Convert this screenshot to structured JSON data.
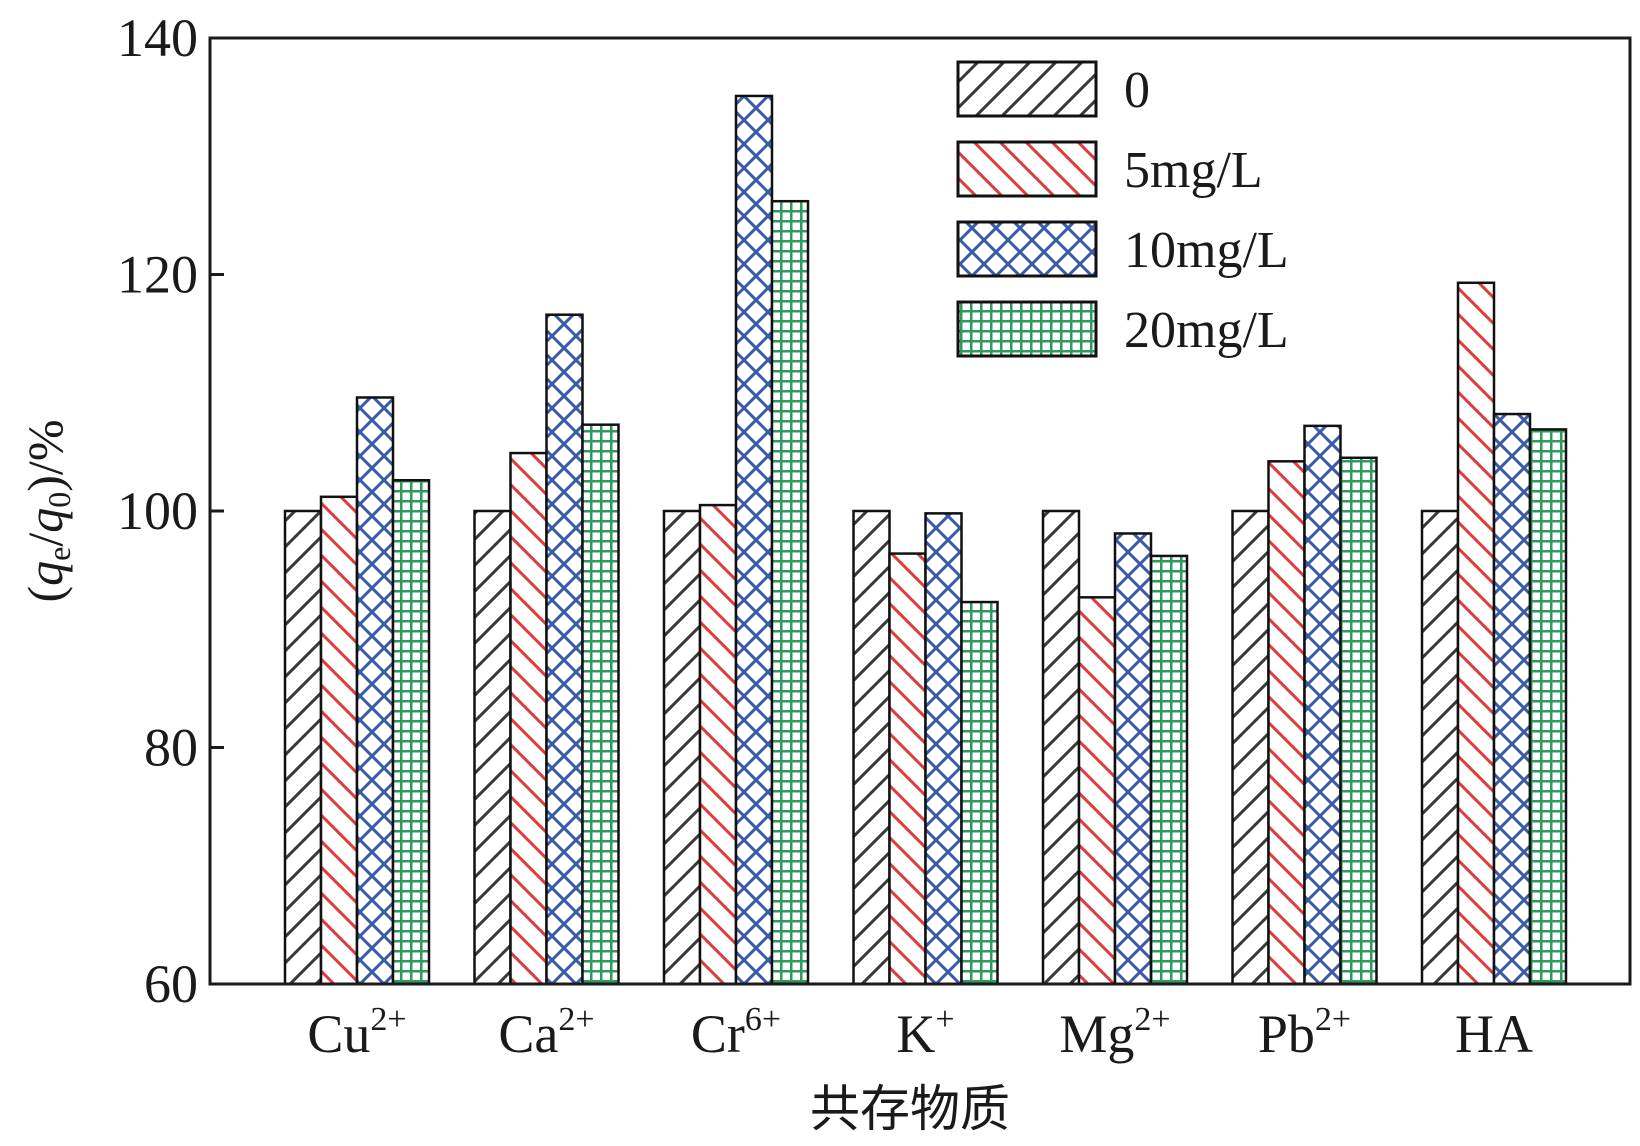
{
  "chart_data": {
    "type": "bar",
    "xlabel": "共存物质",
    "ylabel": {
      "open": "(",
      "q1": "q",
      "sub1": "e",
      "slash": "/",
      "q2": "q",
      "sub2": "0",
      "close": ")/%"
    },
    "ylim": [
      60,
      140
    ],
    "yticks": [
      60,
      80,
      100,
      120,
      140
    ],
    "grid": false,
    "legend_position": "top-right",
    "categories": [
      {
        "base": "Cu",
        "sup": "2+"
      },
      {
        "base": "Ca",
        "sup": "2+"
      },
      {
        "base": "Cr",
        "sup": "6+"
      },
      {
        "base": "K",
        "sup": "+"
      },
      {
        "base": "Mg",
        "sup": "2+"
      },
      {
        "base": "Pb",
        "sup": "2+"
      },
      {
        "base": "HA",
        "sup": ""
      }
    ],
    "series": [
      {
        "name": "0",
        "color": "#3a3a3a",
        "pattern": "diag-up",
        "values": [
          100,
          100,
          100,
          100,
          100,
          100,
          100
        ]
      },
      {
        "name": "5mg/L",
        "color": "#e03c3c",
        "pattern": "diag-down",
        "values": [
          101.2,
          104.9,
          100.5,
          96.4,
          92.7,
          104.2,
          119.3
        ]
      },
      {
        "name": "10mg/L",
        "color": "#3a5ca8",
        "pattern": "cross",
        "values": [
          109.6,
          116.6,
          135.1,
          99.8,
          98.1,
          107.2,
          108.2
        ]
      },
      {
        "name": "20mg/L",
        "color": "#2e9a5e",
        "pattern": "grid",
        "values": [
          102.6,
          107.3,
          126.2,
          92.3,
          96.2,
          104.5,
          106.9
        ]
      }
    ]
  }
}
